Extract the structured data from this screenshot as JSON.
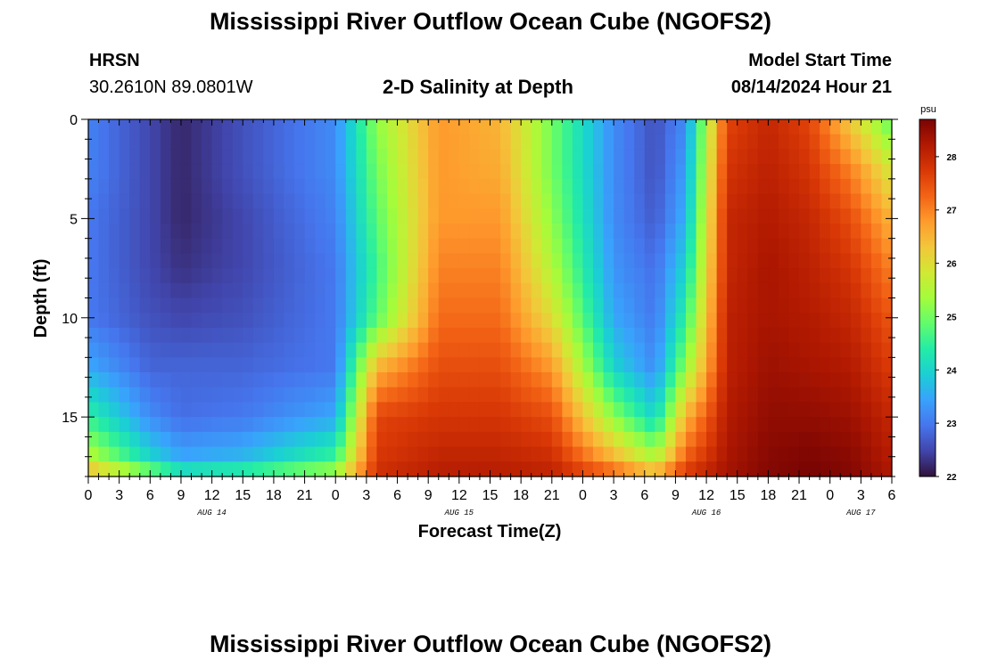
{
  "header": {
    "title": "Mississippi River Outflow Ocean Cube (NGOFS2)",
    "station_name": "HRSN",
    "station_coords": "30.2610N  89.0801W",
    "plot_title": "2-D Salinity at Depth",
    "model_start_label": "Model Start Time",
    "model_start_value": "08/14/2024 Hour 21"
  },
  "footer": {
    "title_repeat": "Mississippi River Outflow Ocean Cube (NGOFS2)"
  },
  "chart_data": {
    "type": "heatmap",
    "title": "2-D Salinity at Depth",
    "xlabel": "Forecast Time(Z)",
    "ylabel": "Depth (ft)",
    "x_start_hour": 0,
    "x_end_hour": 78,
    "x_tick_labels": [
      "0",
      "3",
      "6",
      "9",
      "12",
      "15",
      "18",
      "21",
      "0",
      "3",
      "6",
      "9",
      "12",
      "15",
      "18",
      "21",
      "0",
      "3",
      "6",
      "9",
      "12",
      "15",
      "18",
      "21",
      "0",
      "3",
      "6"
    ],
    "date_labels": [
      {
        "label": "AUG 14",
        "hour": 12
      },
      {
        "label": "AUG 15",
        "hour": 36
      },
      {
        "label": "AUG 16",
        "hour": 60
      },
      {
        "label": "AUG 17",
        "hour": 75
      }
    ],
    "y_ticks": [
      0,
      5,
      10,
      15
    ],
    "ylim": [
      18,
      0
    ],
    "colorbar": {
      "unit": "psu",
      "min": 22,
      "max": 28.7,
      "ticks": [
        22,
        23,
        24,
        25,
        26,
        27,
        28
      ],
      "colors": [
        "#30123b",
        "#4145ab",
        "#4675ed",
        "#39a2fc",
        "#1bcfd4",
        "#24eca6",
        "#61fc6c",
        "#a4fc3b",
        "#d1e834",
        "#f3c63a",
        "#fe9b2d",
        "#f36315",
        "#d93806",
        "#b11901",
        "#7a0403"
      ]
    },
    "depth_levels_ft": [
      0,
      2.5,
      5,
      7.5,
      10,
      12.5,
      15,
      17.5,
      18
    ],
    "time_hours": [
      0,
      6,
      9,
      15,
      24,
      28,
      34,
      40,
      45,
      51,
      55,
      58,
      62,
      66,
      70,
      74,
      78
    ],
    "salinity_psu": [
      [
        23.1,
        22.5,
        22.2,
        22.6,
        23.2,
        25.2,
        26.8,
        26.5,
        25.0,
        23.2,
        22.6,
        23.2,
        27.6,
        28.0,
        27.6,
        26.2,
        24.8
      ],
      [
        23.1,
        22.5,
        22.2,
        22.6,
        23.2,
        25.0,
        26.8,
        26.6,
        25.0,
        23.2,
        22.6,
        23.4,
        27.8,
        28.1,
        27.8,
        27.0,
        25.8
      ],
      [
        23.0,
        22.5,
        22.2,
        22.5,
        23.1,
        24.8,
        26.8,
        26.8,
        25.2,
        23.2,
        22.7,
        23.6,
        28.0,
        28.2,
        28.0,
        27.5,
        26.5
      ],
      [
        23.0,
        22.5,
        22.3,
        22.5,
        23.0,
        24.6,
        27.0,
        27.0,
        25.5,
        23.3,
        22.9,
        24.0,
        28.0,
        28.3,
        28.1,
        27.8,
        27.0
      ],
      [
        23.0,
        22.6,
        22.5,
        22.6,
        23.0,
        24.8,
        27.2,
        27.2,
        26.0,
        23.5,
        23.0,
        24.5,
        28.1,
        28.3,
        28.2,
        28.0,
        27.4
      ],
      [
        23.5,
        22.8,
        22.8,
        22.8,
        23.0,
        26.5,
        27.5,
        27.5,
        26.8,
        24.0,
        23.2,
        25.2,
        28.1,
        28.4,
        28.3,
        28.2,
        27.7
      ],
      [
        24.5,
        23.2,
        22.9,
        23.0,
        23.5,
        27.6,
        27.8,
        27.8,
        27.5,
        25.2,
        24.0,
        26.5,
        28.2,
        28.5,
        28.5,
        28.4,
        28.0
      ],
      [
        25.8,
        24.2,
        23.6,
        23.8,
        24.8,
        27.8,
        28.1,
        28.1,
        28.0,
        26.8,
        25.8,
        27.5,
        28.3,
        28.6,
        28.7,
        28.6,
        28.2
      ],
      [
        27.5,
        26.5,
        25.6,
        25.8,
        26.2,
        28.0,
        28.2,
        28.2,
        28.1,
        27.8,
        27.5,
        28.0,
        28.4,
        28.6,
        28.7,
        28.6,
        28.3
      ]
    ]
  }
}
